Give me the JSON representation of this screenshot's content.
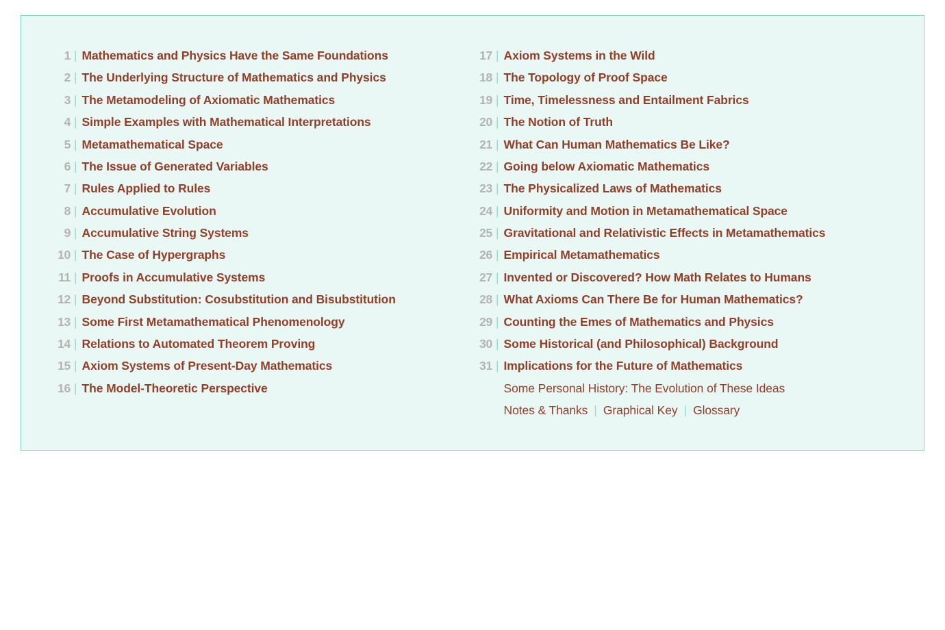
{
  "colors": {
    "border": "#7dccc0",
    "background": "#e9f7f5",
    "number": "#b3b3b3",
    "separator": "#9fd8ce",
    "title": "#923f28",
    "page_bg": "#ffffff"
  },
  "typography": {
    "font_family": "Segoe UI, Helvetica Neue, Arial, sans-serif",
    "font_size": 17.5,
    "line_height": 1.85,
    "title_weight": 700,
    "number_weight": 700,
    "appendix_weight": 400
  },
  "layout": {
    "columns": 2,
    "col1_range": [
      1,
      16
    ],
    "col2_range": [
      17,
      31
    ]
  },
  "toc": {
    "items": [
      {
        "n": "1",
        "t": "Mathematics and Physics Have the Same Foundations"
      },
      {
        "n": "2",
        "t": "The Underlying Structure of Mathematics and Physics"
      },
      {
        "n": "3",
        "t": "The Metamodeling of Axiomatic Mathematics"
      },
      {
        "n": "4",
        "t": "Simple Examples with Mathematical Interpretations"
      },
      {
        "n": "5",
        "t": "Metamathematical Space"
      },
      {
        "n": "6",
        "t": "The Issue of Generated Variables"
      },
      {
        "n": "7",
        "t": "Rules Applied to Rules"
      },
      {
        "n": "8",
        "t": "Accumulative Evolution"
      },
      {
        "n": "9",
        "t": "Accumulative String Systems"
      },
      {
        "n": "10",
        "t": "The Case of Hypergraphs"
      },
      {
        "n": "11",
        "t": "Proofs in Accumulative Systems"
      },
      {
        "n": "12",
        "t": "Beyond Substitution: Cosubstitution and Bisubstitution"
      },
      {
        "n": "13",
        "t": "Some First Metamathematical Phenomenology"
      },
      {
        "n": "14",
        "t": "Relations to Automated Theorem Proving"
      },
      {
        "n": "15",
        "t": "Axiom Systems of Present-Day Mathematics"
      },
      {
        "n": "16",
        "t": "The Model-Theoretic Perspective"
      },
      {
        "n": "17",
        "t": "Axiom Systems in the Wild"
      },
      {
        "n": "18",
        "t": "The Topology of Proof Space"
      },
      {
        "n": "19",
        "t": "Time, Timelessness and Entailment Fabrics"
      },
      {
        "n": "20",
        "t": "The Notion of Truth"
      },
      {
        "n": "21",
        "t": "What Can Human Mathematics Be Like?"
      },
      {
        "n": "22",
        "t": "Going below Axiomatic Mathematics"
      },
      {
        "n": "23",
        "t": "The Physicalized Laws of Mathematics"
      },
      {
        "n": "24",
        "t": "Uniformity and Motion in Metamathematical Space"
      },
      {
        "n": "25",
        "t": "Gravitational and Relativistic Effects in Metamathematics"
      },
      {
        "n": "26",
        "t": "Empirical Metamathematics"
      },
      {
        "n": "27",
        "t": "Invented or Discovered? How Math Relates to Humans"
      },
      {
        "n": "28",
        "t": "What Axioms Can There Be for Human Mathematics?"
      },
      {
        "n": "29",
        "t": "Counting the Emes of Mathematics and Physics"
      },
      {
        "n": "30",
        "t": "Some Historical (and Philosophical) Background"
      },
      {
        "n": "31",
        "t": "Implications for the Future of Mathematics"
      }
    ]
  },
  "appendix": {
    "narrative": "Some Personal History: The Evolution of These Ideas",
    "links": [
      "Notes & Thanks",
      "Graphical Key",
      "Glossary"
    ]
  }
}
